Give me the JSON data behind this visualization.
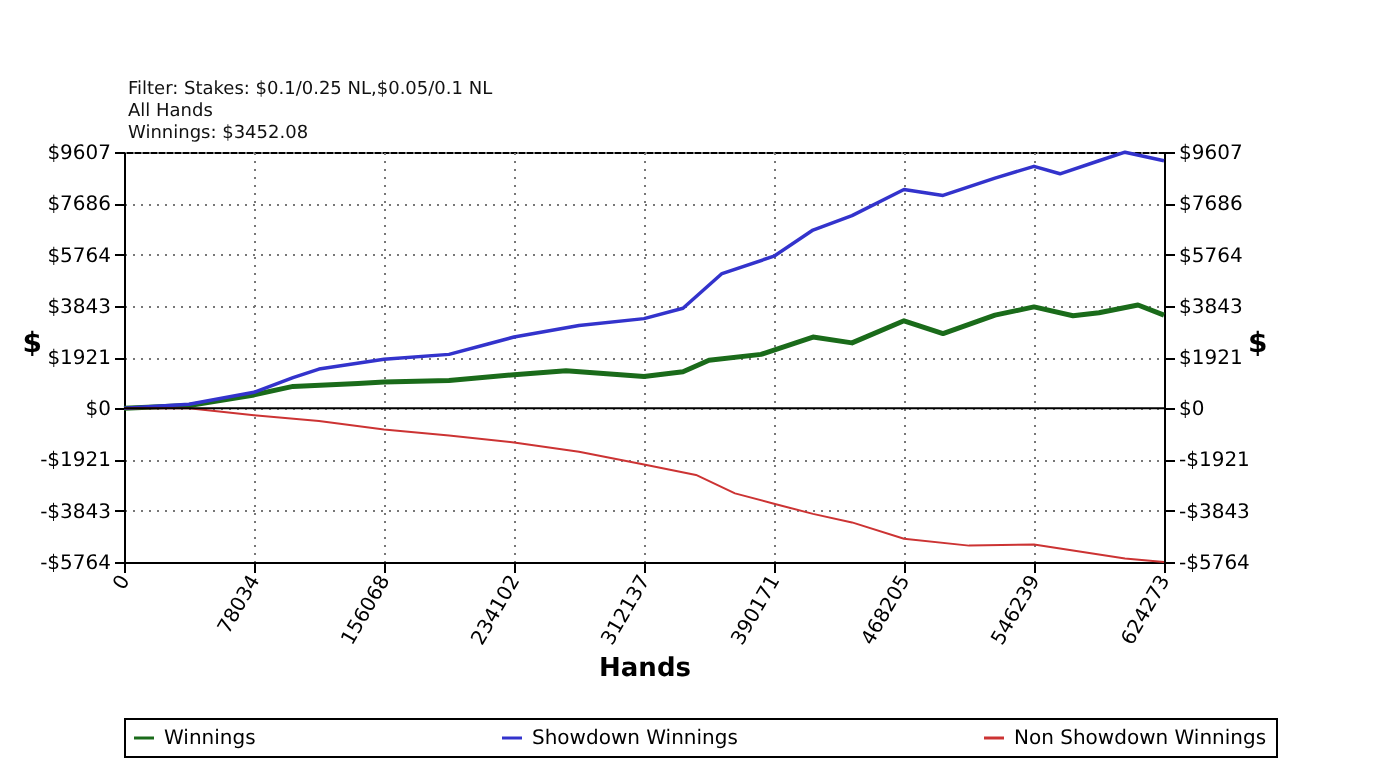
{
  "chart_data": {
    "type": "line",
    "xlabel": "Hands",
    "ylabel": "$",
    "y2label": "$",
    "annotations": [
      "Filter: Stakes: $0.1/0.25 NL,$0.05/0.1 NL",
      "All Hands",
      "Winnings: $3452.08"
    ],
    "xlim": [
      0,
      624273
    ],
    "xticks": [
      0,
      78034,
      156068,
      234102,
      312137,
      390171,
      468205,
      546239,
      624273
    ],
    "ylim": [
      -5764,
      9607
    ],
    "yticks": [
      {
        "value": -5764,
        "label": "-$5764"
      },
      {
        "value": -3843,
        "label": "-$3843"
      },
      {
        "value": -1921,
        "label": "-$1921"
      },
      {
        "value": 0,
        "label": "$0"
      },
      {
        "value": 1921,
        "label": "$1921"
      },
      {
        "value": 3843,
        "label": "$3843"
      },
      {
        "value": 5764,
        "label": "$5764"
      },
      {
        "value": 7686,
        "label": "$7686"
      },
      {
        "value": 9607,
        "label": "$9607"
      }
    ],
    "y2lim": [
      -5764,
      9607
    ],
    "y2ticks": [
      {
        "value": -5764,
        "label": "-$5764"
      },
      {
        "value": -3843,
        "label": "-$3843"
      },
      {
        "value": -1921,
        "label": "-$1921"
      },
      {
        "value": 0,
        "label": "$0"
      },
      {
        "value": 1921,
        "label": "$1921"
      },
      {
        "value": 3843,
        "label": "$3843"
      },
      {
        "value": 5764,
        "label": "$5764"
      },
      {
        "value": 7686,
        "label": "$7686"
      },
      {
        "value": 9607,
        "label": "$9607"
      }
    ],
    "ref_lines": [
      {
        "axis": "y2",
        "value": 0,
        "color": "#000000"
      }
    ],
    "grid": true,
    "legend": "bottom",
    "series": [
      {
        "name": "Winnings",
        "color": "#1a6b1a",
        "x": [
          0,
          39017,
          78034,
          101444,
          140461,
          156068,
          195085,
          234102,
          265316,
          312137,
          335546,
          351153,
          382367,
          413580,
          436990,
          468205,
          491614,
          522829,
          546239,
          569649,
          585256,
          608666,
          624273
        ],
        "values": [
          0,
          100,
          500,
          820,
          930,
          980,
          1040,
          1260,
          1410,
          1190,
          1370,
          1800,
          2020,
          2670,
          2450,
          3280,
          2800,
          3490,
          3800,
          3470,
          3580,
          3870,
          3490
        ]
      },
      {
        "name": "Showdown Winnings",
        "color": "#3333cc",
        "x": [
          0,
          39017,
          78034,
          101444,
          117051,
          156068,
          195085,
          218495,
          234102,
          273119,
          312137,
          335546,
          358956,
          390171,
          413580,
          436990,
          468205,
          491614,
          522829,
          546239,
          561845,
          585256,
          600863,
          624273
        ],
        "values": [
          0,
          150,
          600,
          1150,
          1470,
          1840,
          2020,
          2410,
          2670,
          3100,
          3360,
          3750,
          5050,
          5700,
          6680,
          7220,
          8200,
          7980,
          8630,
          9070,
          8790,
          9280,
          9600,
          9280
        ]
      },
      {
        "name": "Non Showdown Winnings",
        "color": "#cc3333",
        "x": [
          0,
          39017,
          78034,
          117051,
          156068,
          195085,
          234102,
          273119,
          312137,
          343350,
          366760,
          390171,
          413580,
          436990,
          468205,
          507222,
          546239,
          569649,
          600863,
          624273
        ],
        "values": [
          0,
          0,
          -260,
          -480,
          -800,
          -1020,
          -1280,
          -1630,
          -2110,
          -2500,
          -3190,
          -3580,
          -3960,
          -4280,
          -4890,
          -5150,
          -5110,
          -5330,
          -5630,
          -5760
        ]
      }
    ]
  }
}
